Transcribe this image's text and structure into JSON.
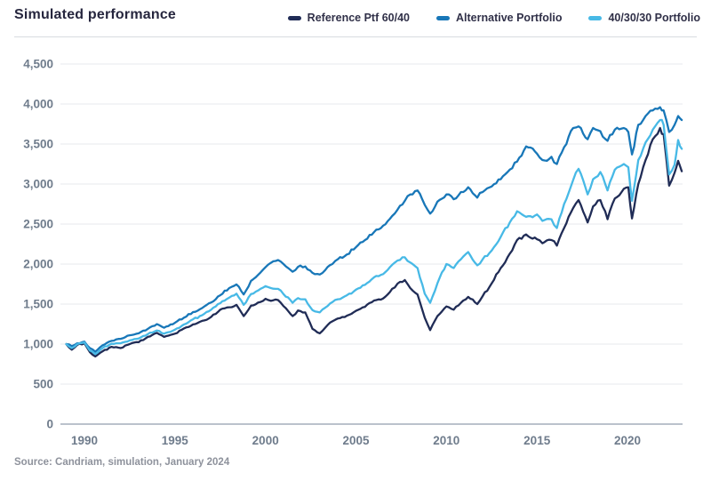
{
  "header": {
    "title": "Simulated performance"
  },
  "legend": {
    "items": [
      {
        "label": "Reference Ptf 60/40",
        "color": "#202c56"
      },
      {
        "label": "Alternative Portfolio",
        "color": "#1877b8"
      },
      {
        "label": "40/30/30 Portfolio",
        "color": "#47b9e6"
      }
    ]
  },
  "source": "Source: Candriam, simulation, January 2024",
  "colors": {
    "gridline": "#e7e9ed",
    "axis_line": "#929ead",
    "tick_text": "#6f7c8c",
    "title_text": "#26263e",
    "legend_text": "#303048",
    "source_text": "#8e929c",
    "divider": "#d8dbe0",
    "background": "#ffffff"
  },
  "chart_data": {
    "type": "line",
    "title": "Simulated performance",
    "xlabel": "",
    "ylabel": "",
    "ylim": [
      0,
      4500
    ],
    "xlim": [
      1988.7,
      2023.4
    ],
    "grid": "horizontal",
    "legend_position": "top-right",
    "y_ticks": [
      0,
      500,
      1000,
      1500,
      2000,
      2500,
      3000,
      3500,
      4000,
      4500
    ],
    "y_tick_labels": [
      "0",
      "500",
      "1,000",
      "1,500",
      "2,000",
      "2,500",
      "3,000",
      "3,500",
      "4,000",
      "4,500"
    ],
    "x_tick_years": [
      1990,
      1995,
      2000,
      2005,
      2010,
      2015,
      2020
    ],
    "x_tick_labels": [
      "1990",
      "1995",
      "2000",
      "2005",
      "2010",
      "2015",
      "2020"
    ],
    "x": [
      1989.0,
      1989.3,
      1989.6,
      1990.0,
      1990.3,
      1990.6,
      1991.0,
      1991.5,
      1992.0,
      1992.5,
      1993.0,
      1993.5,
      1994.0,
      1994.4,
      1995.0,
      1995.5,
      1996.0,
      1996.5,
      1997.0,
      1997.5,
      1998.0,
      1998.4,
      1998.8,
      1999.2,
      1999.6,
      2000.0,
      2000.3,
      2000.7,
      2001.0,
      2001.5,
      2001.8,
      2002.2,
      2002.6,
      2003.0,
      2003.3,
      2003.7,
      2004.0,
      2004.5,
      2005.0,
      2005.5,
      2006.0,
      2006.5,
      2007.0,
      2007.3,
      2007.7,
      2008.0,
      2008.4,
      2008.8,
      2009.1,
      2009.5,
      2010.0,
      2010.4,
      2010.8,
      2011.2,
      2011.7,
      2012.0,
      2012.5,
      2013.0,
      2013.5,
      2013.9,
      2014.4,
      2015.0,
      2015.3,
      2015.8,
      2016.1,
      2016.5,
      2017.0,
      2017.3,
      2017.8,
      2018.1,
      2018.5,
      2018.9,
      2019.3,
      2019.8,
      2020.05,
      2020.25,
      2020.6,
      2021.0,
      2021.4,
      2021.8,
      2022.0,
      2022.3,
      2022.6,
      2022.8,
      2023.0
    ],
    "series": [
      {
        "name": "Reference Ptf 60/40",
        "color": "#202c56",
        "values": [
          1000,
          930,
          990,
          1010,
          900,
          845,
          910,
          965,
          950,
          1000,
          1025,
          1090,
          1140,
          1090,
          1130,
          1195,
          1245,
          1290,
          1340,
          1430,
          1460,
          1490,
          1350,
          1480,
          1520,
          1565,
          1540,
          1550,
          1475,
          1350,
          1420,
          1395,
          1190,
          1135,
          1205,
          1285,
          1320,
          1355,
          1415,
          1465,
          1545,
          1570,
          1690,
          1755,
          1800,
          1700,
          1620,
          1330,
          1175,
          1350,
          1470,
          1430,
          1515,
          1590,
          1500,
          1600,
          1760,
          1950,
          2130,
          2300,
          2370,
          2310,
          2260,
          2300,
          2230,
          2450,
          2700,
          2800,
          2520,
          2720,
          2800,
          2560,
          2820,
          2940,
          2960,
          2570,
          3000,
          3300,
          3560,
          3700,
          3620,
          2980,
          3140,
          3290,
          3160
        ]
      },
      {
        "name": "Alternative Portfolio",
        "color": "#1877b8",
        "values": [
          1000,
          975,
          1010,
          1030,
          950,
          905,
          985,
          1040,
          1065,
          1110,
          1135,
          1190,
          1250,
          1205,
          1265,
          1330,
          1400,
          1450,
          1520,
          1610,
          1700,
          1745,
          1620,
          1790,
          1865,
          1960,
          2015,
          2050,
          2000,
          1905,
          1965,
          1970,
          1890,
          1870,
          1925,
          2000,
          2060,
          2120,
          2210,
          2300,
          2400,
          2480,
          2600,
          2680,
          2790,
          2870,
          2920,
          2740,
          2630,
          2780,
          2870,
          2810,
          2900,
          2960,
          2830,
          2900,
          2970,
          3060,
          3180,
          3280,
          3470,
          3380,
          3300,
          3340,
          3250,
          3460,
          3700,
          3720,
          3560,
          3700,
          3660,
          3540,
          3680,
          3700,
          3650,
          3370,
          3740,
          3850,
          3920,
          3960,
          3920,
          3650,
          3740,
          3850,
          3800
        ]
      },
      {
        "name": "40/30/30 Portfolio",
        "color": "#47b9e6",
        "values": [
          1000,
          950,
          1000,
          1020,
          920,
          875,
          950,
          1005,
          1010,
          1045,
          1070,
          1125,
          1170,
          1130,
          1180,
          1245,
          1310,
          1360,
          1430,
          1510,
          1580,
          1630,
          1490,
          1625,
          1670,
          1725,
          1700,
          1690,
          1625,
          1515,
          1575,
          1560,
          1425,
          1395,
          1455,
          1525,
          1560,
          1610,
          1680,
          1740,
          1835,
          1875,
          1990,
          2045,
          2085,
          2020,
          1950,
          1630,
          1515,
          1760,
          2000,
          1950,
          2060,
          2150,
          1985,
          2060,
          2170,
          2340,
          2520,
          2660,
          2590,
          2620,
          2540,
          2560,
          2450,
          2750,
          3050,
          3190,
          2870,
          3060,
          3150,
          2920,
          3180,
          3250,
          3210,
          2790,
          3300,
          3520,
          3680,
          3800,
          3740,
          3120,
          3240,
          3550,
          3440
        ]
      }
    ]
  }
}
